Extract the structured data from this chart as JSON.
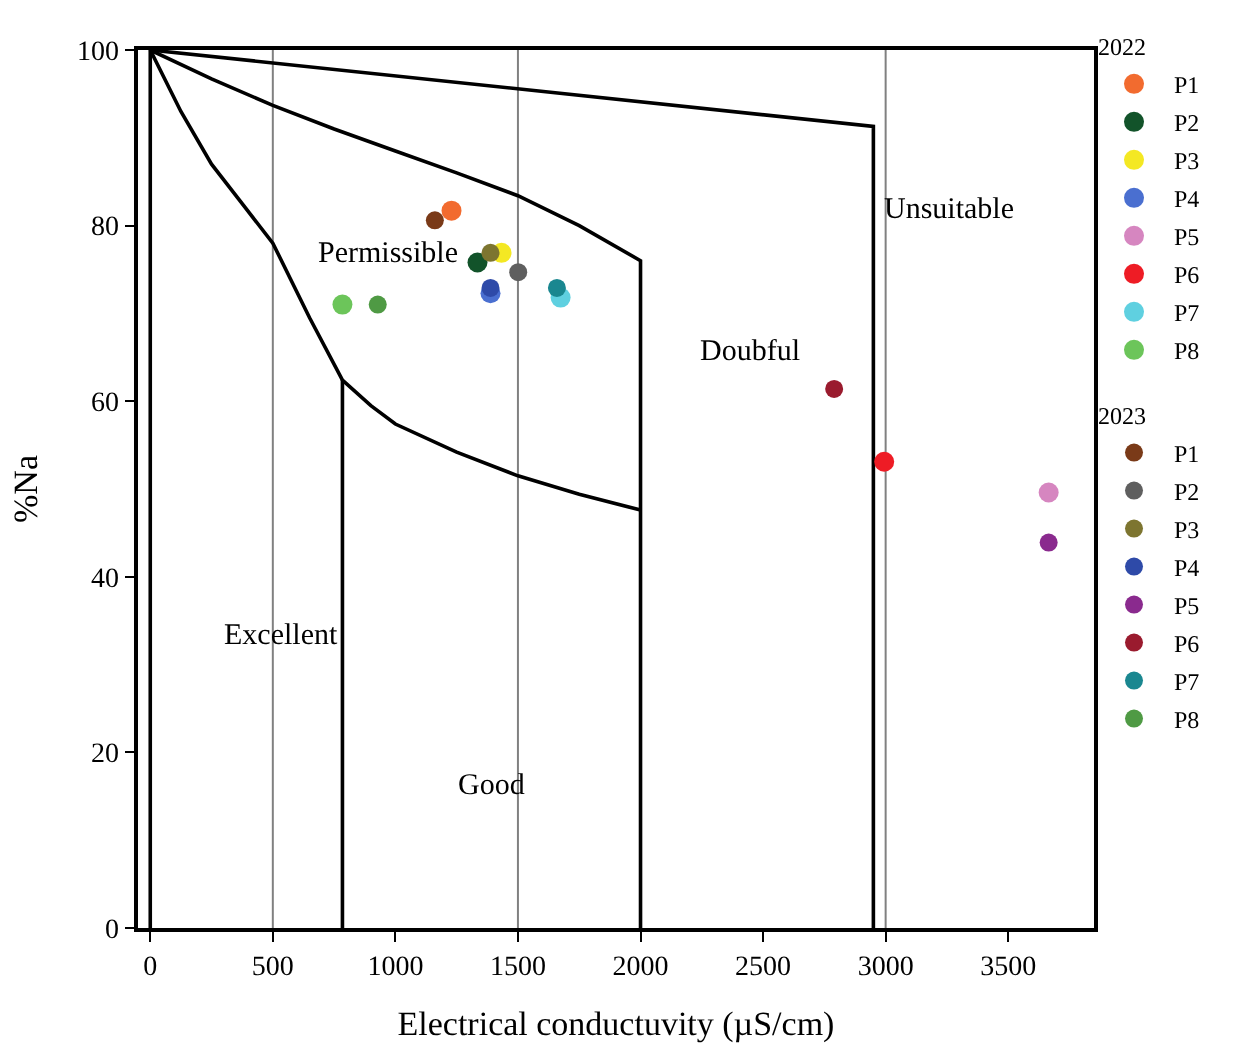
{
  "chart_data": {
    "type": "scatter",
    "xlabel": "Electrical conductuvity (µS/cm)",
    "ylabel": "%Na",
    "xlim": [
      -50,
      3850
    ],
    "ylim": [
      0,
      100
    ],
    "xticks": [
      0,
      500,
      1000,
      1500,
      2000,
      2500,
      3000,
      3500
    ],
    "yticks": [
      0,
      20,
      40,
      60,
      80,
      100
    ],
    "legend": "right",
    "marker": "circle",
    "ref_lines": [
      {
        "axis": "x",
        "value": 500,
        "color": "#808080"
      },
      {
        "axis": "x",
        "value": 1500,
        "color": "#808080"
      },
      {
        "axis": "x",
        "value": 3000,
        "color": "#808080"
      }
    ],
    "annotations": [
      "Permissible",
      "Unsuitable",
      "Doubful",
      "Excellent",
      "Good",
      "2022",
      "2023"
    ],
    "series": [
      {
        "type": "line",
        "marker": "none",
        "color": "#000000",
        "x": [
          0,
          2950,
          2950
        ],
        "values": [
          100,
          91.3,
          0
        ]
      },
      {
        "type": "line",
        "marker": "none",
        "color": "#000000",
        "x": [
          0,
          250,
          500,
          750,
          1000,
          1250,
          1500,
          1750,
          2000,
          2000
        ],
        "values": [
          100,
          96.7,
          93.7,
          91,
          88.5,
          86,
          83.4,
          80,
          76,
          0
        ]
      },
      {
        "type": "line",
        "marker": "none",
        "color": "#000000",
        "x": [
          0,
          125,
          250,
          375,
          500,
          650,
          784,
          900,
          1000,
          1250,
          1500,
          1750,
          2000
        ],
        "values": [
          100,
          93,
          87,
          82.5,
          78,
          69.5,
          62.4,
          59.5,
          57.4,
          54.2,
          51.5,
          49.4,
          47.6
        ]
      },
      {
        "type": "line",
        "marker": "none",
        "color": "#000000",
        "x": [
          0,
          0
        ],
        "values": [
          0,
          100
        ]
      },
      {
        "type": "line",
        "marker": "none",
        "color": "#000000",
        "x": [
          784,
          784
        ],
        "values": [
          0,
          62.4
        ]
      },
      {
        "name": "P1",
        "color": "#f26b2f",
        "x": [
          1229
        ],
        "values": [
          81.7
        ]
      },
      {
        "name": "P2",
        "color": "#12532a",
        "x": [
          1335
        ],
        "values": [
          75.8
        ]
      },
      {
        "name": "P3",
        "color": "#f4e823",
        "x": [
          1433
        ],
        "values": [
          76.9
        ]
      },
      {
        "name": "P4",
        "color": "#4a6fd0",
        "x": [
          1388
        ],
        "values": [
          72.3
        ]
      },
      {
        "name": "P5",
        "color": "#d686c0",
        "x": [
          3665
        ],
        "values": [
          49.6
        ]
      },
      {
        "name": "P6",
        "color": "#ee1c25",
        "x": [
          2994
        ],
        "values": [
          53.1
        ]
      },
      {
        "name": "P7",
        "color": "#5fd0e0",
        "x": [
          1674
        ],
        "values": [
          71.8
        ]
      },
      {
        "name": "P8",
        "color": "#6cc55a",
        "x": [
          784
        ],
        "values": [
          71.0
        ]
      },
      {
        "name": "P1",
        "color": "#7a3a18",
        "x": [
          1161
        ],
        "values": [
          80.6
        ]
      },
      {
        "name": "P2",
        "color": "#5f5f5f",
        "x": [
          1501
        ],
        "values": [
          74.7
        ]
      },
      {
        "name": "P3",
        "color": "#7d7530",
        "x": [
          1388
        ],
        "values": [
          76.9
        ]
      },
      {
        "name": "P4",
        "color": "#2e4aa8",
        "x": [
          1388
        ],
        "values": [
          72.9
        ]
      },
      {
        "name": "P5",
        "color": "#8a2a8e",
        "x": [
          3665
        ],
        "values": [
          43.9
        ]
      },
      {
        "name": "P6",
        "color": "#9a1b2e",
        "x": [
          2790
        ],
        "values": [
          61.4
        ]
      },
      {
        "name": "P7",
        "color": "#1a8790",
        "x": [
          1659
        ],
        "values": [
          72.9
        ]
      },
      {
        "name": "P8",
        "color": "#4f9a44",
        "x": [
          928
        ],
        "values": [
          71.0
        ]
      }
    ]
  }
}
